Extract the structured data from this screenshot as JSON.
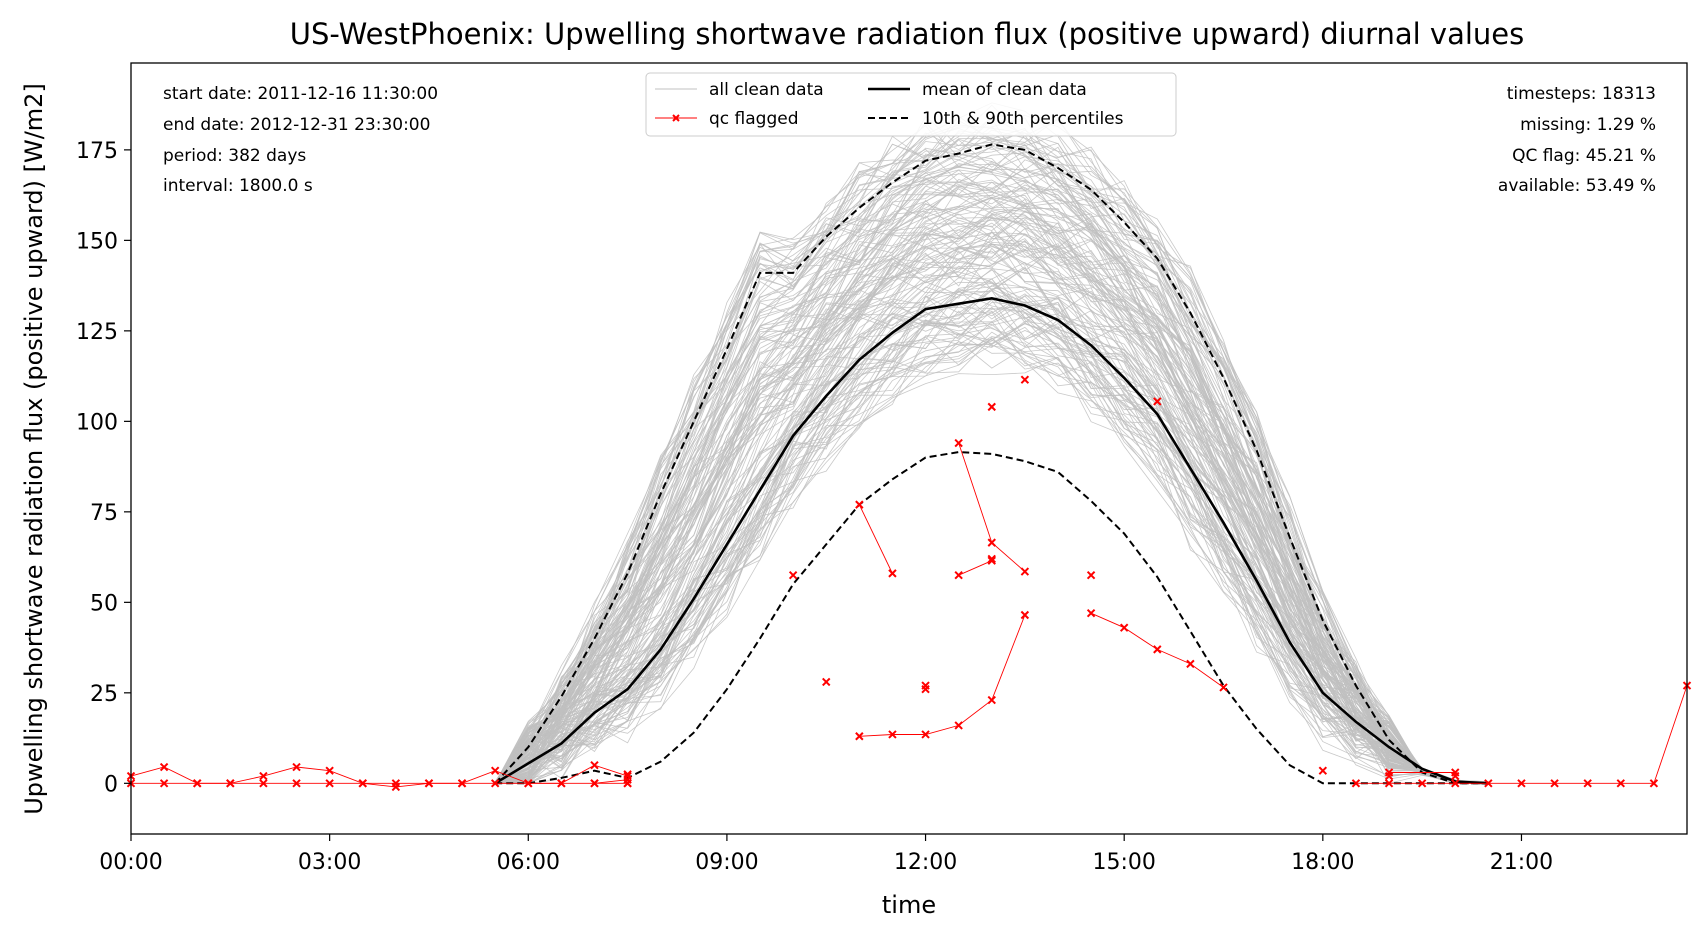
{
  "chart_data": {
    "type": "line",
    "title": "US-WestPhoenix: Upwelling shortwave radiation flux (positive upward) diurnal values",
    "xlabel": "time",
    "ylabel": "Upwelling shortwave radiation flux (positive upward) [W/m2]",
    "xlim": [
      0,
      23.5
    ],
    "ylim": [
      -14,
      199
    ],
    "x_ticks": [
      {
        "value": 0,
        "label": "00:00"
      },
      {
        "value": 3,
        "label": "03:00"
      },
      {
        "value": 6,
        "label": "06:00"
      },
      {
        "value": 9,
        "label": "09:00"
      },
      {
        "value": 12,
        "label": "12:00"
      },
      {
        "value": 15,
        "label": "15:00"
      },
      {
        "value": 18,
        "label": "18:00"
      },
      {
        "value": 21,
        "label": "21:00"
      }
    ],
    "y_ticks": [
      {
        "value": 0,
        "label": "0"
      },
      {
        "value": 25,
        "label": "25"
      },
      {
        "value": 50,
        "label": "50"
      },
      {
        "value": 75,
        "label": "75"
      },
      {
        "value": 100,
        "label": "100"
      },
      {
        "value": 125,
        "label": "125"
      },
      {
        "value": 150,
        "label": "150"
      },
      {
        "value": 175,
        "label": "175"
      }
    ],
    "grid": false,
    "legend_position": "top-center",
    "legend": [
      {
        "key": "clean",
        "label": "all clean data"
      },
      {
        "key": "qc",
        "label": "qc flagged"
      },
      {
        "key": "mean",
        "label": "mean of clean data"
      },
      {
        "key": "pct",
        "label": "10th & 90th percentiles"
      }
    ],
    "info_left": [
      "start date: 2011-12-16 11:30:00",
      "end date: 2012-12-31 23:30:00",
      "period: 382 days",
      "interval: 1800.0 s"
    ],
    "info_right": [
      "timesteps: 18313",
      "missing: 1.29 %",
      "QC flag: 45.21 %",
      "available: 53.49 %"
    ],
    "colors": {
      "clean": "#c0c0c0",
      "mean": "#000000",
      "percentile": "#000000",
      "qc": "#ff0000"
    },
    "clean_data_note": "many daily traces drawn as thin grey lines between 05:30 and 20:30",
    "series": [
      {
        "name": "mean of clean data",
        "style": "solid",
        "points": [
          [
            5.5,
            0
          ],
          [
            6,
            5.5
          ],
          [
            6.5,
            11
          ],
          [
            7,
            19.5
          ],
          [
            7.5,
            26
          ],
          [
            8,
            37
          ],
          [
            8.5,
            51
          ],
          [
            9,
            66
          ],
          [
            9.5,
            81
          ],
          [
            10,
            96
          ],
          [
            10.5,
            107
          ],
          [
            11,
            117
          ],
          [
            11.5,
            124.5
          ],
          [
            12,
            131
          ],
          [
            12.5,
            132.5
          ],
          [
            13,
            134
          ],
          [
            13.5,
            132
          ],
          [
            14,
            128
          ],
          [
            14.5,
            121
          ],
          [
            15,
            112
          ],
          [
            15.5,
            102
          ],
          [
            16,
            87
          ],
          [
            16.5,
            72
          ],
          [
            17,
            56
          ],
          [
            17.5,
            39
          ],
          [
            18,
            25
          ],
          [
            18.5,
            17
          ],
          [
            19,
            10
          ],
          [
            19.5,
            4
          ],
          [
            20,
            0.5
          ],
          [
            20.5,
            0
          ]
        ]
      },
      {
        "name": "90th percentile",
        "style": "dashed",
        "points": [
          [
            5.5,
            0
          ],
          [
            6,
            10
          ],
          [
            6.5,
            24
          ],
          [
            7,
            40
          ],
          [
            7.5,
            58
          ],
          [
            8,
            80
          ],
          [
            8.5,
            100
          ],
          [
            9,
            120
          ],
          [
            9.5,
            141
          ],
          [
            10,
            141
          ],
          [
            10.5,
            151
          ],
          [
            11,
            159
          ],
          [
            11.5,
            166
          ],
          [
            12,
            172
          ],
          [
            12.5,
            174
          ],
          [
            13,
            176.5
          ],
          [
            13.5,
            175
          ],
          [
            14,
            170
          ],
          [
            14.5,
            164
          ],
          [
            15,
            155
          ],
          [
            15.5,
            145
          ],
          [
            16,
            130
          ],
          [
            16.5,
            112
          ],
          [
            17,
            92
          ],
          [
            17.5,
            68
          ],
          [
            18,
            45
          ],
          [
            18.5,
            27
          ],
          [
            19,
            12
          ],
          [
            19.5,
            3
          ],
          [
            20,
            0
          ],
          [
            20.5,
            0
          ]
        ]
      },
      {
        "name": "10th percentile",
        "style": "dashed",
        "points": [
          [
            5.5,
            0
          ],
          [
            6,
            0
          ],
          [
            6.5,
            1.5
          ],
          [
            7,
            3.5
          ],
          [
            7.5,
            1.5
          ],
          [
            8,
            6
          ],
          [
            8.5,
            14
          ],
          [
            9,
            26
          ],
          [
            9.5,
            40
          ],
          [
            10,
            55
          ],
          [
            10.5,
            66
          ],
          [
            11,
            77
          ],
          [
            11.5,
            84
          ],
          [
            12,
            90
          ],
          [
            12.5,
            91.5
          ],
          [
            13,
            91
          ],
          [
            13.5,
            89
          ],
          [
            14,
            86
          ],
          [
            14.5,
            78
          ],
          [
            15,
            69
          ],
          [
            15.5,
            57
          ],
          [
            16,
            42
          ],
          [
            16.5,
            27
          ],
          [
            17,
            15
          ],
          [
            17.5,
            5
          ],
          [
            18,
            0
          ],
          [
            18.5,
            0
          ],
          [
            19,
            0
          ],
          [
            19.5,
            0
          ],
          [
            20,
            0
          ],
          [
            20.5,
            0
          ]
        ]
      }
    ],
    "qc_flagged_traces": [
      [
        [
          0,
          2
        ],
        [
          0.5,
          4.5
        ],
        [
          1,
          0
        ],
        [
          1.5,
          0
        ],
        [
          2,
          2
        ],
        [
          2.5,
          4.5
        ],
        [
          3,
          3.5
        ],
        [
          3.5,
          0
        ],
        [
          4,
          -1
        ],
        [
          4.5,
          0
        ],
        [
          5,
          0
        ],
        [
          5.5,
          3.5
        ],
        [
          6,
          0
        ],
        [
          6.5,
          0
        ],
        [
          7,
          5
        ],
        [
          7.5,
          2
        ]
      ],
      [
        [
          0,
          0
        ],
        [
          0.5,
          0
        ],
        [
          1,
          0
        ],
        [
          1.5,
          0
        ],
        [
          2,
          0
        ],
        [
          2.5,
          0
        ],
        [
          3,
          0
        ],
        [
          3.5,
          0
        ],
        [
          4,
          0
        ],
        [
          4.5,
          0
        ],
        [
          5,
          0
        ],
        [
          5.5,
          0
        ],
        [
          6,
          0
        ],
        [
          6.5,
          0
        ],
        [
          7,
          0
        ],
        [
          7.5,
          0
        ]
      ],
      [
        [
          7,
          0
        ],
        [
          7.5,
          1
        ]
      ],
      [
        [
          11,
          77
        ],
        [
          11.5,
          58
        ]
      ],
      [
        [
          12.5,
          94
        ],
        [
          13,
          66.5
        ],
        [
          13.5,
          58.5
        ]
      ],
      [
        [
          11,
          13
        ],
        [
          11.5,
          13.5
        ],
        [
          12,
          13.5
        ],
        [
          12.5,
          16
        ],
        [
          13,
          23
        ],
        [
          13.5,
          46.5
        ]
      ],
      [
        [
          12.5,
          57.5
        ],
        [
          13,
          61.5
        ]
      ],
      [
        [
          14.5,
          47
        ],
        [
          15,
          43
        ],
        [
          15.5,
          37
        ],
        [
          16,
          33
        ],
        [
          16.5,
          26.5
        ]
      ],
      [
        [
          18,
          3.5
        ]
      ],
      [
        [
          18.5,
          0
        ],
        [
          19,
          0
        ],
        [
          19.5,
          0
        ],
        [
          20,
          0
        ],
        [
          20.5,
          0
        ],
        [
          21,
          0
        ],
        [
          21.5,
          0
        ],
        [
          22,
          0
        ],
        [
          22.5,
          0
        ],
        [
          23,
          0
        ],
        [
          23.5,
          27
        ]
      ],
      [
        [
          19,
          2
        ],
        [
          19,
          3
        ],
        [
          20,
          3
        ],
        [
          20,
          2
        ]
      ]
    ],
    "qc_flagged_points": [
      [
        10,
        57.5
      ],
      [
        10.5,
        28
      ],
      [
        12,
        27
      ],
      [
        12,
        26
      ],
      [
        13,
        104
      ],
      [
        13,
        62
      ],
      [
        13.5,
        111.5
      ],
      [
        14.5,
        57.5
      ],
      [
        15.5,
        105.5
      ],
      [
        7.5,
        0
      ],
      [
        7.5,
        2.5
      ]
    ]
  }
}
